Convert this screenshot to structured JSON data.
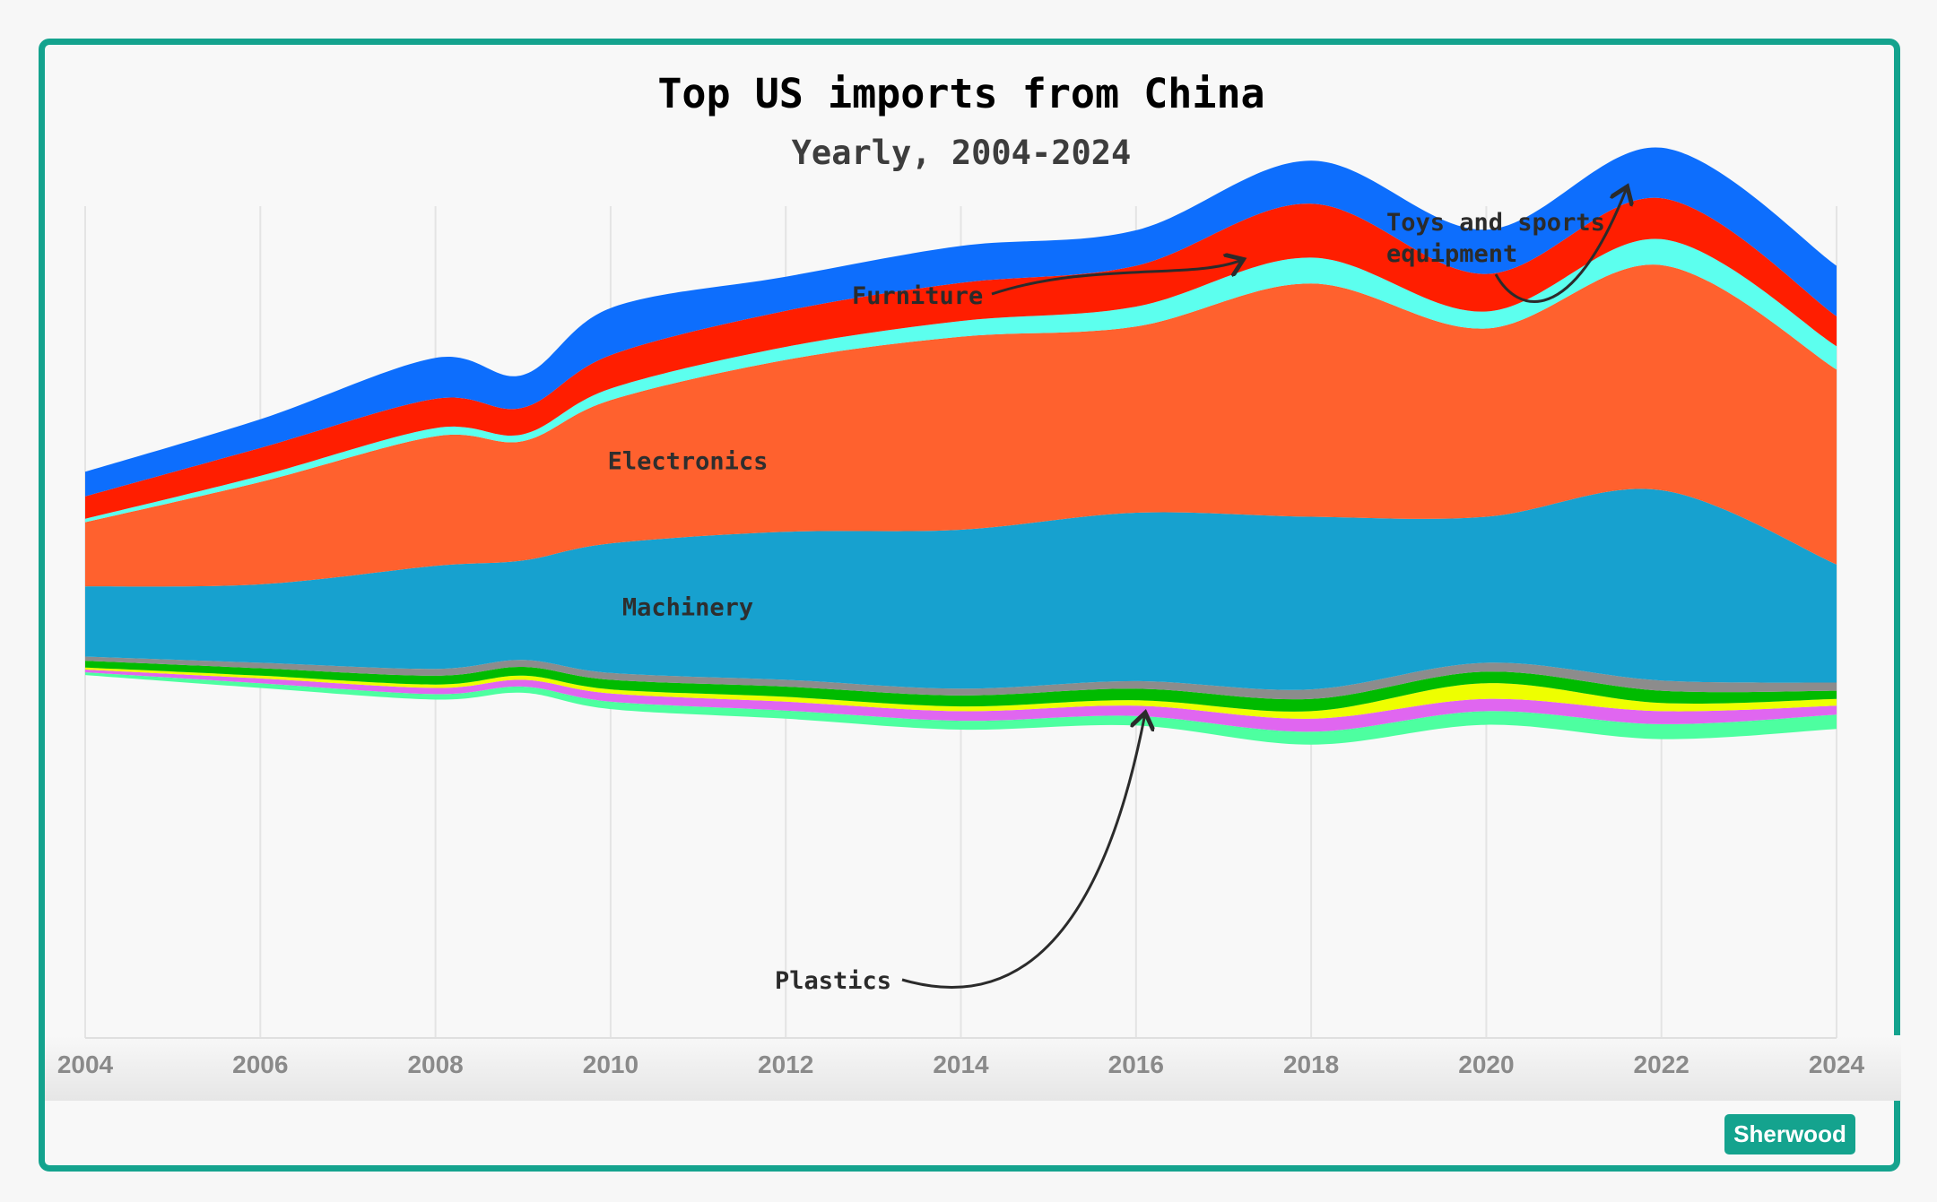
{
  "chart_data": {
    "type": "area",
    "layout": "streamgraph",
    "title": "Top US imports from China",
    "subtitle": "Yearly, 2004-2024",
    "xlabel": "",
    "ylabel": "",
    "x": [
      2004,
      2006,
      2008,
      2009,
      2010,
      2012,
      2014,
      2016,
      2018,
      2020,
      2022,
      2024
    ],
    "xticks": [
      "2004",
      "2006",
      "2008",
      "2010",
      "2012",
      "2014",
      "2016",
      "2018",
      "2020",
      "2022",
      "2024"
    ],
    "xlim": [
      2004,
      2024
    ],
    "grid": "vertical",
    "baseline": [
      -6.7,
      -8.6,
      -10.3,
      -9.3,
      -11.7,
      -13.1,
      -14.7,
      -14.1,
      -16.9,
      -14.0,
      -16.1,
      -14.6
    ],
    "series": [
      {
        "name": "Plastics",
        "color": "#4dffa0",
        "values": [
          0.4,
          0.7,
          0.8,
          0.9,
          1.1,
          1.2,
          1.3,
          1.4,
          1.9,
          2.0,
          2.2,
          2.1
        ]
      },
      {
        "name": "",
        "color": "#e066f0",
        "values": [
          0.4,
          0.7,
          0.9,
          1.0,
          1.2,
          1.3,
          1.4,
          1.5,
          1.9,
          1.8,
          1.9,
          1.3
        ]
      },
      {
        "name": "",
        "color": "#eeff00",
        "values": [
          0.3,
          0.4,
          0.5,
          0.6,
          0.6,
          0.7,
          0.7,
          0.8,
          1.1,
          2.3,
          1.2,
          1.0
        ]
      },
      {
        "name": "",
        "color": "#00bb00",
        "values": [
          1.0,
          1.1,
          1.3,
          1.3,
          1.4,
          1.5,
          1.6,
          1.7,
          1.8,
          1.7,
          1.8,
          1.2
        ]
      },
      {
        "name": "",
        "color": "#8c8c8c",
        "values": [
          0.6,
          0.8,
          1.0,
          1.0,
          1.0,
          1.0,
          1.0,
          1.1,
          1.4,
          1.3,
          1.5,
          1.2
        ]
      },
      {
        "name": "Machinery",
        "color": "#17a1cf",
        "values": [
          10.3,
          11.5,
          15.1,
          14.6,
          19.0,
          21.7,
          23.3,
          24.7,
          25.3,
          21.4,
          27.9,
          17.3
        ]
      },
      {
        "name": "Electronics",
        "color": "#ff612e",
        "values": [
          9.4,
          15.0,
          19.0,
          17.5,
          21.0,
          25.2,
          28.3,
          27.3,
          34.2,
          27.6,
          33.0,
          28.6
        ]
      },
      {
        "name": "",
        "color": "#5cffee",
        "values": [
          0.5,
          0.9,
          1.2,
          1.0,
          1.7,
          1.9,
          2.3,
          2.9,
          3.8,
          2.5,
          3.8,
          3.4
        ]
      },
      {
        "name": "Furniture",
        "color": "#ff1e00",
        "values": [
          3.3,
          4.1,
          4.3,
          3.9,
          4.9,
          5.3,
          5.6,
          6.0,
          7.9,
          5.5,
          6.0,
          4.4
        ]
      },
      {
        "name": "Toys and sports equipment",
        "color": "#0d6efd",
        "values": [
          3.6,
          4.2,
          6.0,
          4.8,
          6.9,
          5.0,
          5.4,
          5.2,
          6.3,
          6.5,
          7.4,
          7.4
        ]
      }
    ],
    "inline_labels": [
      "Electronics",
      "Machinery"
    ],
    "annotations": [
      {
        "text": "Furniture",
        "series": "Furniture",
        "x": 2017.2
      },
      {
        "text": "Toys and sports equipment",
        "lines": [
          "Toys and sports",
          "equipment"
        ],
        "series": "Toys and sports equipment",
        "x": 2021.6
      },
      {
        "text": "Plastics",
        "series": "Plastics",
        "x": 2016.1
      }
    ],
    "legend": "none"
  },
  "footer": {
    "logo": "Sherwood",
    "brand_color": "#14a38e"
  }
}
